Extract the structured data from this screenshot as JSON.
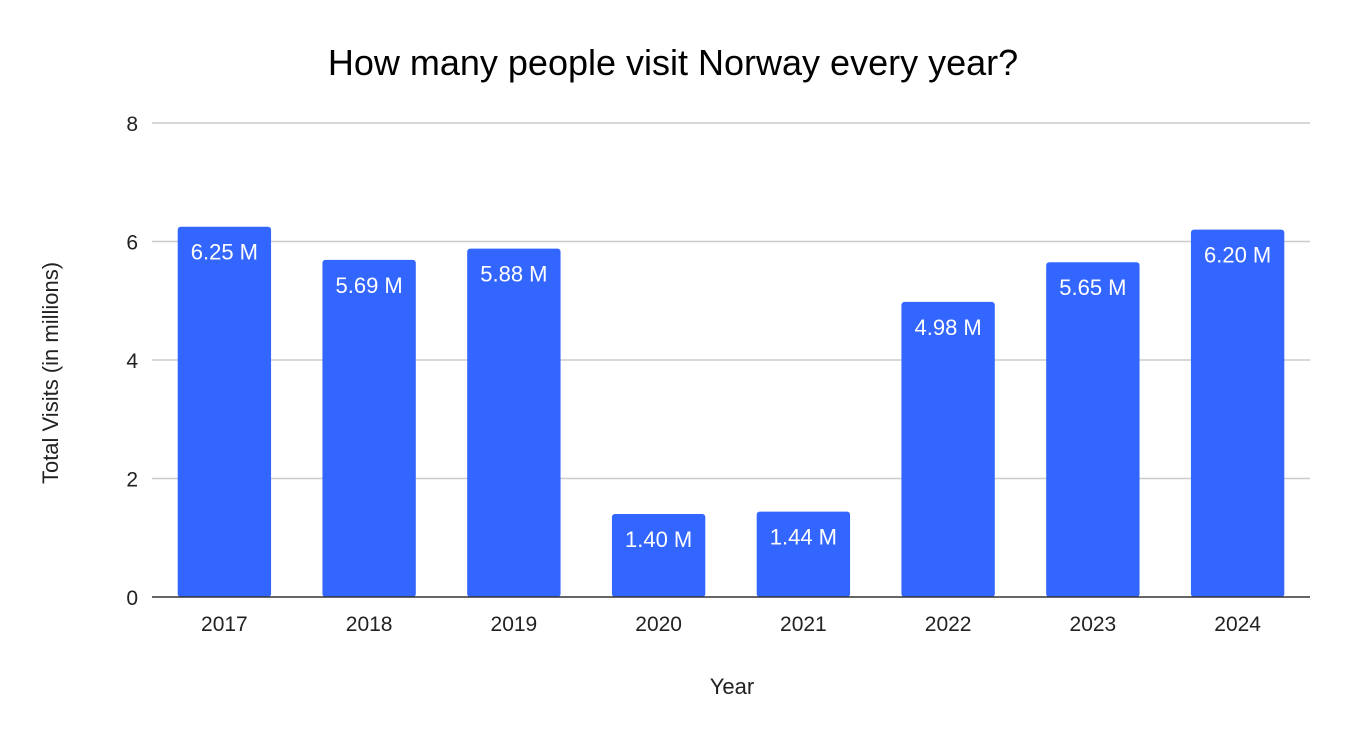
{
  "chart_data": {
    "type": "bar",
    "title": "How many people visit Norway every year?",
    "xlabel": "Year",
    "ylabel": "Total Visits (in millions)",
    "categories": [
      "2017",
      "2018",
      "2019",
      "2020",
      "2021",
      "2022",
      "2023",
      "2024"
    ],
    "values": [
      6.25,
      5.69,
      5.88,
      1.4,
      1.44,
      4.98,
      5.65,
      6.2
    ],
    "data_labels": [
      "6.25 M",
      "5.69 M",
      "5.88 M",
      "1.40 M",
      "1.44 M",
      "4.98 M",
      "5.65 M",
      "6.20 M"
    ],
    "ylim": [
      0,
      8
    ],
    "yticks": [
      "0",
      "2",
      "4",
      "6",
      "8"
    ],
    "grid": true,
    "legend": "none",
    "colors": {
      "bar": "#3366ff",
      "gridline": "#cccccc",
      "baseline": "#333333"
    }
  }
}
